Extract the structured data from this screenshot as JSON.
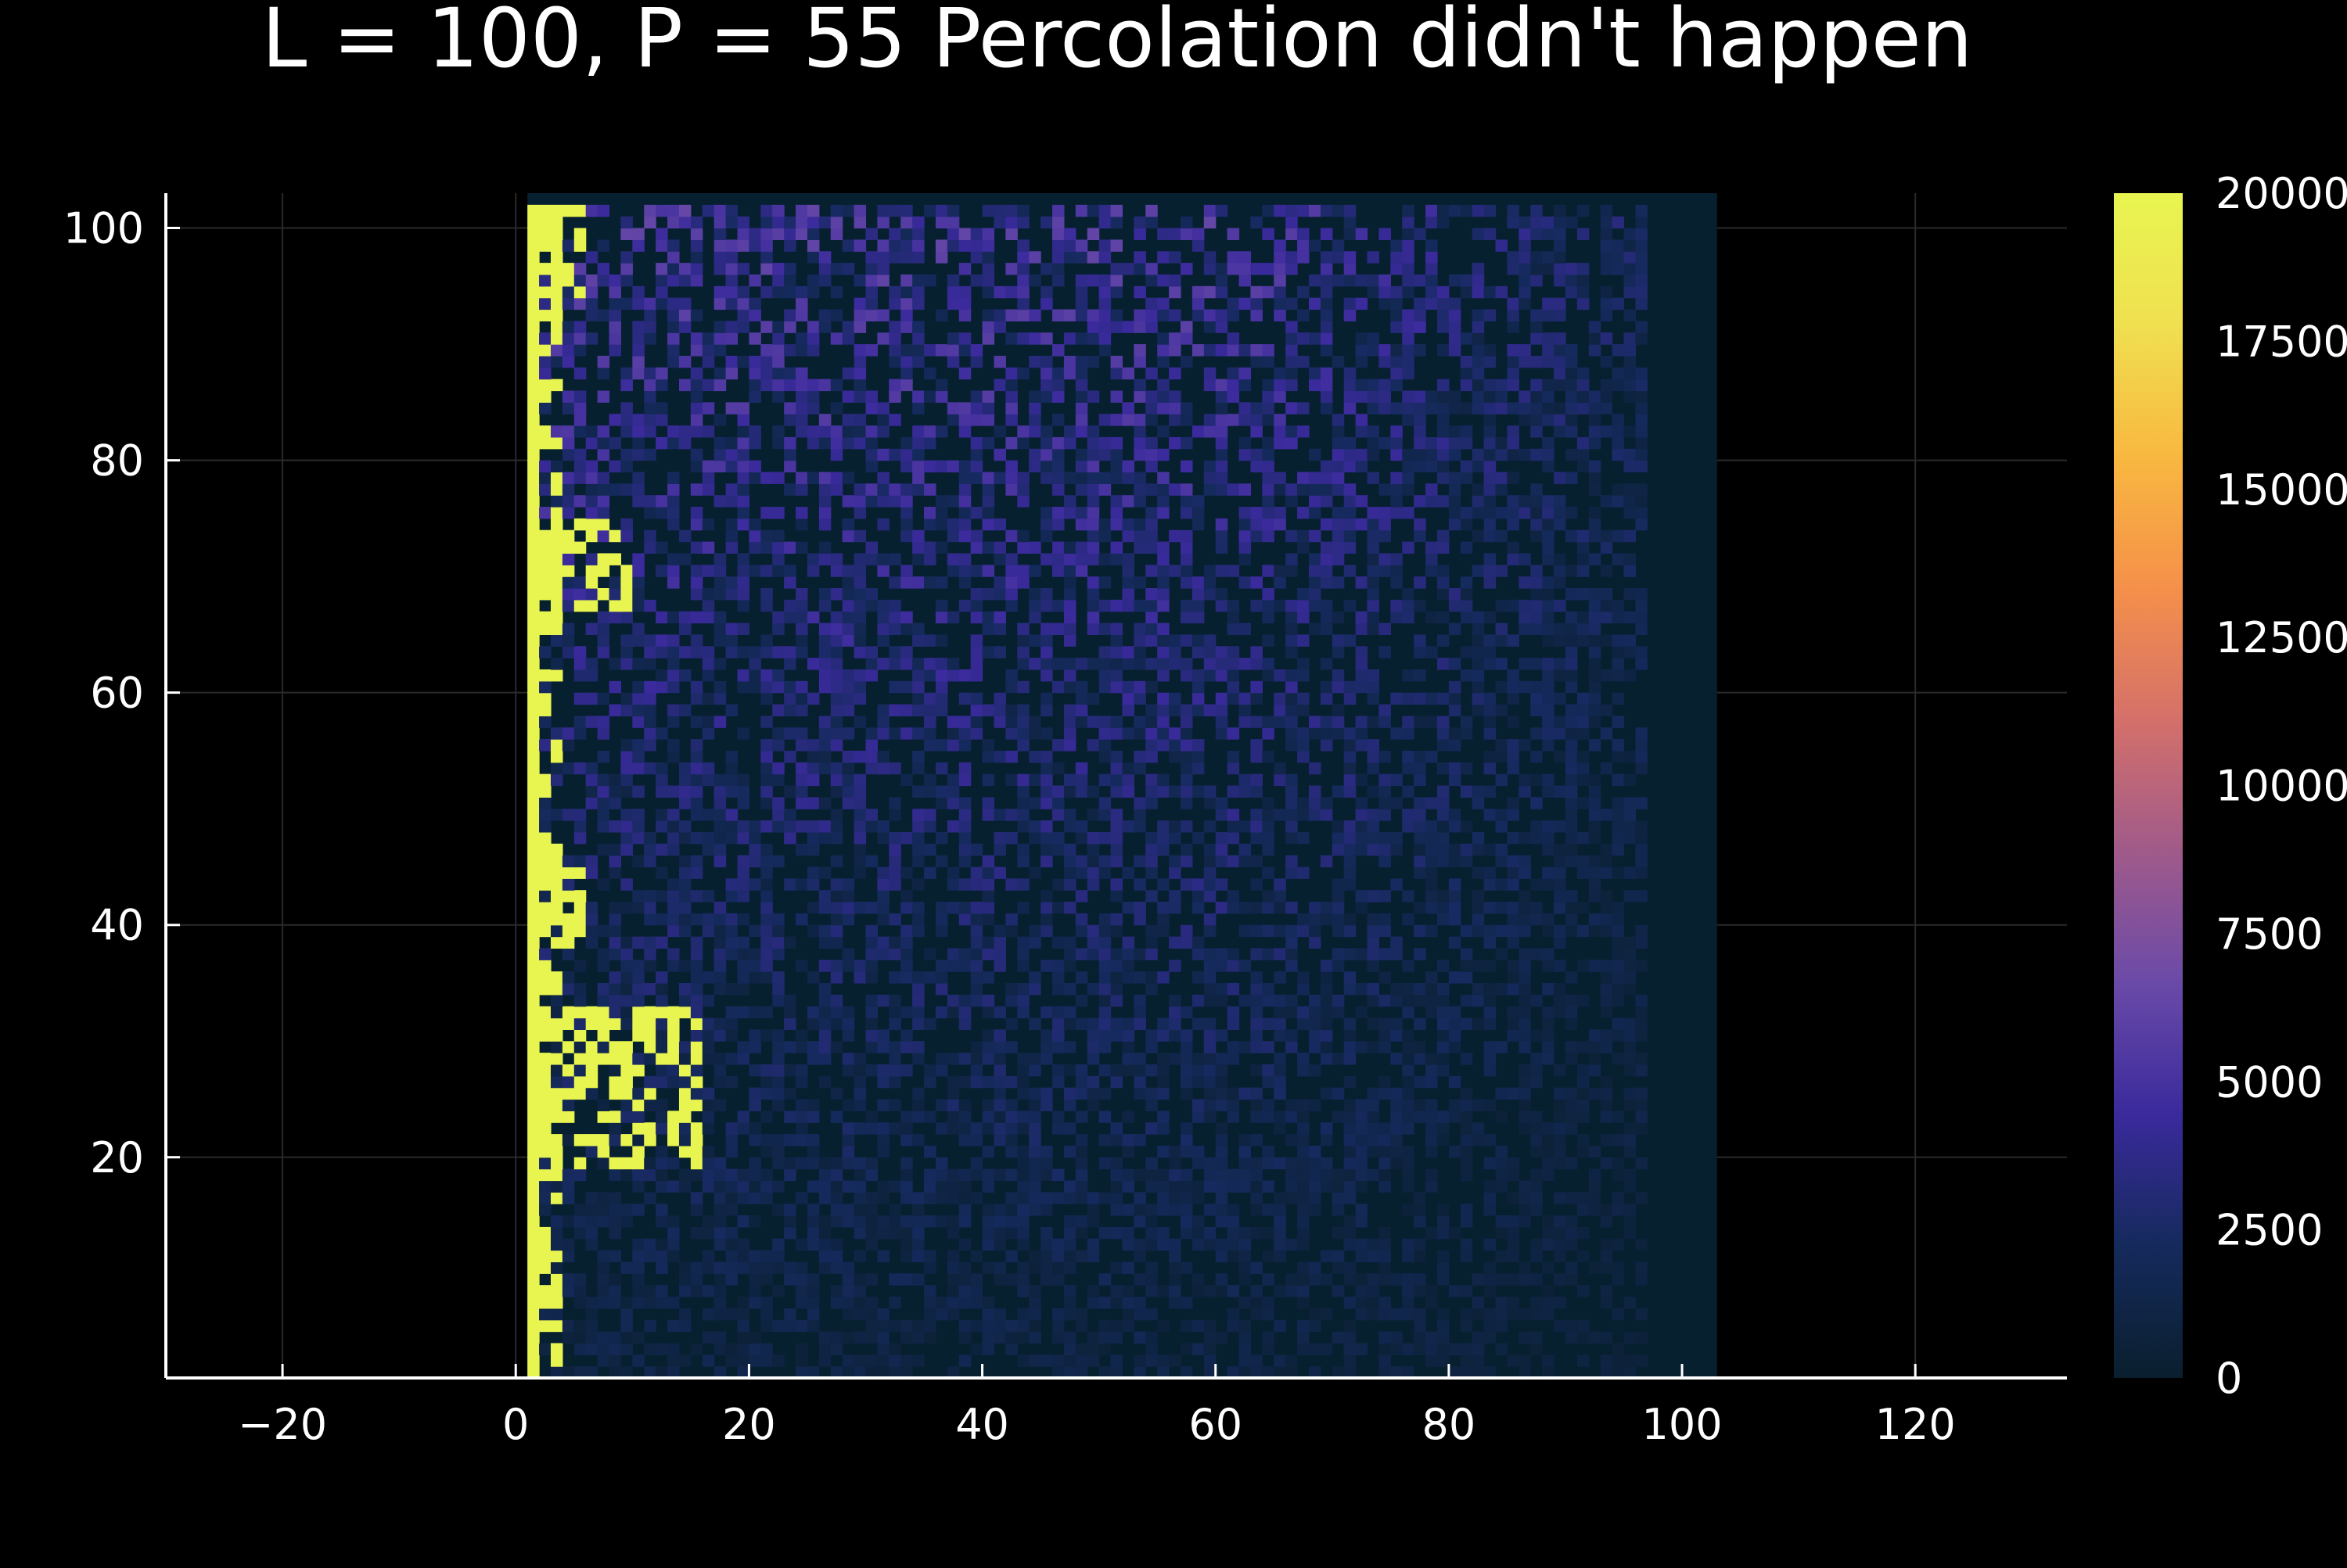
{
  "chart_data": {
    "type": "heatmap",
    "title": "L = 100, P = 55 Percolation didn't happen",
    "xlabel": "",
    "ylabel": "",
    "xlim": [
      -30,
      133
    ],
    "ylim": [
      1,
      103
    ],
    "x_ticks": [
      -20,
      0,
      20,
      40,
      60,
      80,
      100,
      120
    ],
    "y_ticks": [
      20,
      40,
      60,
      80,
      100
    ],
    "x_tick_labels": [
      "−20",
      "0",
      "20",
      "40",
      "60",
      "80",
      "100",
      "120"
    ],
    "y_tick_labels": [
      "20",
      "40",
      "60",
      "80",
      "100"
    ],
    "grid": true,
    "grid_size": 100,
    "colorbar": {
      "min": 0,
      "max": 20000,
      "ticks": [
        0,
        2500,
        5000,
        7500,
        10000,
        12500,
        15000,
        17500,
        20000
      ],
      "tick_labels": [
        "0",
        "2500",
        "5000",
        "7500",
        "10000",
        "12500",
        "15000",
        "17500",
        "20000"
      ],
      "colormap": [
        "#0a1f2e",
        "#152a5c",
        "#3a2a9c",
        "#6a4aa8",
        "#a05a8a",
        "#d4706a",
        "#f5904a",
        "#f8b840",
        "#f0e050",
        "#e8f550"
      ]
    },
    "background_color": "#000000",
    "empty_cell_color": "#062030",
    "cluster_color": "#e8f550",
    "percolated": false
  }
}
